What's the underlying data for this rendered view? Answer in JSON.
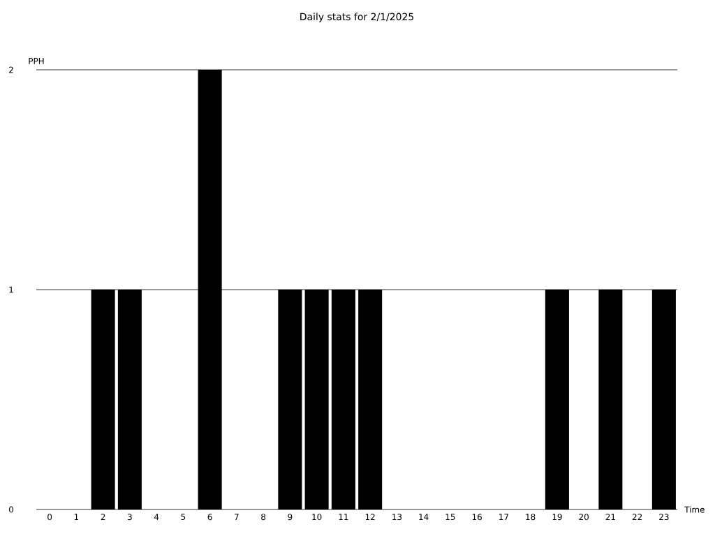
{
  "chart_data": {
    "type": "bar",
    "title": "Daily stats for 2/1/2025",
    "xlabel": "Time",
    "ylabel": "PPH",
    "categories": [
      "0",
      "1",
      "2",
      "3",
      "4",
      "5",
      "6",
      "7",
      "8",
      "9",
      "10",
      "11",
      "12",
      "13",
      "14",
      "15",
      "16",
      "17",
      "18",
      "19",
      "20",
      "21",
      "22",
      "23"
    ],
    "values": [
      0,
      0,
      1,
      1,
      0,
      0,
      2,
      0,
      0,
      1,
      1,
      1,
      1,
      0,
      0,
      0,
      0,
      0,
      0,
      1,
      0,
      1,
      0,
      1
    ],
    "color": "#000000",
    "ylim": [
      0,
      2
    ],
    "yticks": [
      0,
      1,
      2
    ],
    "grid": "y"
  }
}
